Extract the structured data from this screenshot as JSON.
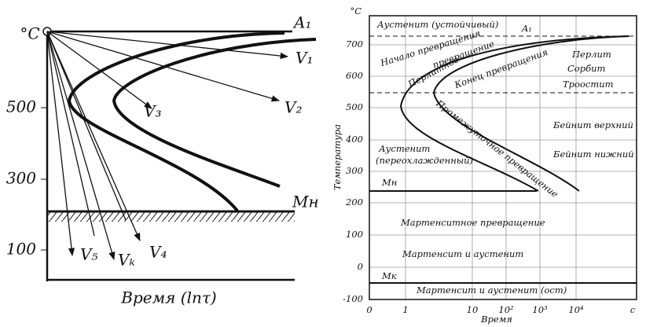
{
  "left": {
    "y_unit": "°C",
    "yticks": [
      500,
      300,
      100
    ],
    "x_label": "Время (lnτ)",
    "curve_labels": [
      "A₁",
      "V₁",
      "V₂",
      "V₃",
      "V₄",
      "Vₖ",
      "V₅",
      "Mн"
    ]
  },
  "right": {
    "y_unit": "°C",
    "y_label": "Температура",
    "x_label": "Время",
    "yticks": [
      700,
      600,
      500,
      400,
      300,
      200,
      100,
      0,
      -100
    ],
    "xticks": [
      "0",
      "1",
      "10",
      "10²",
      "10³",
      "10⁴",
      "c"
    ],
    "regions": [
      "Аустенит (устойчивый)",
      "A₁",
      "Начало превращения",
      "Перлитное",
      "превращение",
      "Конец превращения",
      "Перлит",
      "Сорбит",
      "Троостит",
      "Бейнит верхний",
      "Бейнит нижний",
      "Промежуточное превращение",
      "Аустенит",
      "(переохлажденный)",
      "Mн",
      "Мартенситное превращение",
      "Мартенсит и аустенит",
      "Mк",
      "Мартенсит и аустенит (ост)"
    ]
  }
}
